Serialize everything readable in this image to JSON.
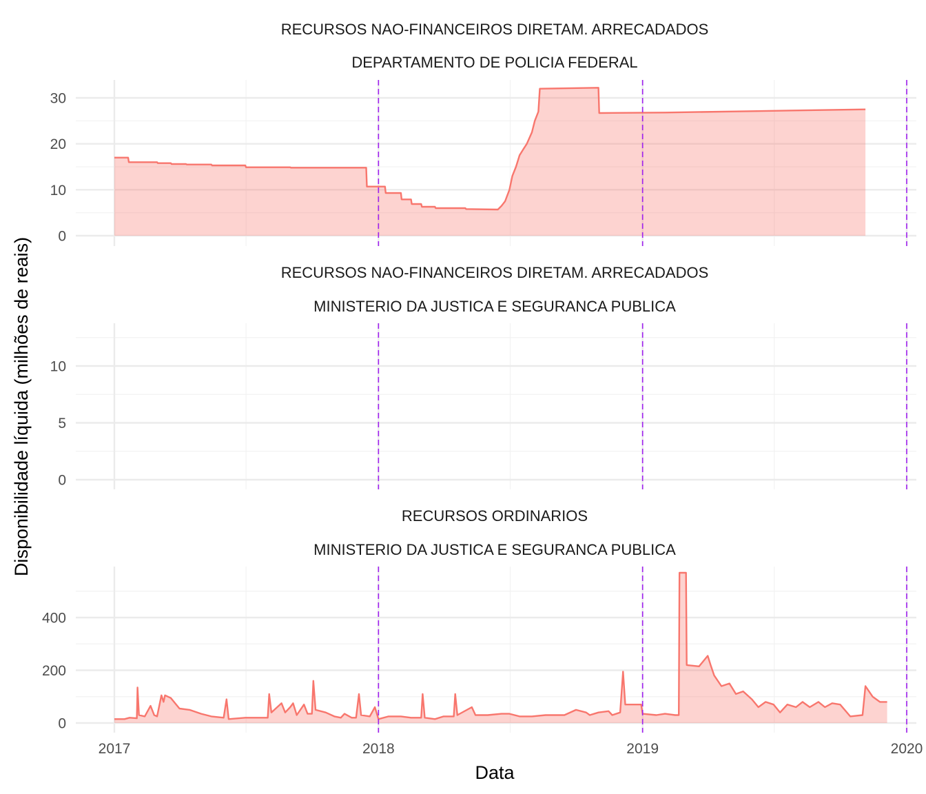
{
  "colors": {
    "series_line": "#F8766D",
    "series_fill": "#F8766D",
    "year_marker": "#A020F0",
    "grid_major": "#EBEBEB",
    "grid_minor": "#F2F2F2"
  },
  "chart_data": {
    "type": "area",
    "x_label": "Data",
    "y_label": "Disponibilidade líquida (milhões de reais)",
    "x_ticks": [
      "2017",
      "2018",
      "2019",
      "2020"
    ],
    "x_range": [
      "2017-01-01",
      "2020-01-01"
    ],
    "year_markers": [
      "2018-01-01",
      "2019-01-01",
      "2020-01-01"
    ],
    "panels": [
      {
        "title": [
          "RECURSOS NAO-FINANCEIROS DIRETAM. ARRECADADOS",
          "DEPARTAMENTO DE POLICIA FEDERAL"
        ],
        "y_ticks": [
          0,
          10,
          20,
          30
        ],
        "y_range": [
          0,
          33
        ],
        "points": [
          [
            "2017-01-01",
            17
          ],
          [
            "2017-01-20",
            17
          ],
          [
            "2017-01-21",
            16
          ],
          [
            "2017-03-01",
            16
          ],
          [
            "2017-03-02",
            15.8
          ],
          [
            "2017-03-20",
            15.8
          ],
          [
            "2017-03-21",
            15.6
          ],
          [
            "2017-04-10",
            15.6
          ],
          [
            "2017-04-11",
            15.5
          ],
          [
            "2017-05-15",
            15.5
          ],
          [
            "2017-05-16",
            15.3
          ],
          [
            "2017-07-01",
            15.3
          ],
          [
            "2017-07-02",
            14.9
          ],
          [
            "2017-09-01",
            14.9
          ],
          [
            "2017-09-02",
            14.8
          ],
          [
            "2017-12-15",
            14.8
          ],
          [
            "2017-12-16",
            10.7
          ],
          [
            "2018-01-10",
            10.7
          ],
          [
            "2018-01-11",
            9.3
          ],
          [
            "2018-02-01",
            9.3
          ],
          [
            "2018-02-02",
            7.9
          ],
          [
            "2018-02-15",
            7.9
          ],
          [
            "2018-02-16",
            6.9
          ],
          [
            "2018-03-01",
            6.9
          ],
          [
            "2018-03-02",
            6.3
          ],
          [
            "2018-03-20",
            6.3
          ],
          [
            "2018-03-21",
            6
          ],
          [
            "2018-05-01",
            6
          ],
          [
            "2018-05-02",
            5.8
          ],
          [
            "2018-06-15",
            5.7
          ],
          [
            "2018-06-20",
            6.5
          ],
          [
            "2018-06-25",
            7.5
          ],
          [
            "2018-07-01",
            10
          ],
          [
            "2018-07-05",
            13
          ],
          [
            "2018-07-10",
            15
          ],
          [
            "2018-07-15",
            17.5
          ],
          [
            "2018-07-20",
            18.8
          ],
          [
            "2018-07-25",
            20
          ],
          [
            "2018-08-01",
            22.5
          ],
          [
            "2018-08-05",
            25
          ],
          [
            "2018-08-10",
            27
          ],
          [
            "2018-08-12",
            32
          ],
          [
            "2018-11-01",
            32.2
          ],
          [
            "2018-11-02",
            26.7
          ],
          [
            "2019-02-01",
            26.8
          ],
          [
            "2019-06-01",
            27.1
          ],
          [
            "2019-11-05",
            27.5
          ]
        ]
      },
      {
        "title": [
          "RECURSOS NAO-FINANCEIROS DIRETAM. ARRECADADOS",
          "MINISTERIO DA JUSTICA E SEGURANCA PUBLICA"
        ],
        "y_ticks": [
          0,
          5,
          10
        ],
        "y_range": [
          0,
          14
        ],
        "points": []
      },
      {
        "title": [
          "RECURSOS ORDINARIOS",
          "MINISTERIO DA JUSTICA E SEGURANCA PUBLICA"
        ],
        "y_ticks": [
          0,
          200,
          400
        ],
        "y_range": [
          0,
          600
        ],
        "points": [
          [
            "2017-01-01",
            15
          ],
          [
            "2017-01-15",
            15
          ],
          [
            "2017-01-22",
            20
          ],
          [
            "2017-02-01",
            18
          ],
          [
            "2017-02-02",
            135
          ],
          [
            "2017-02-04",
            30
          ],
          [
            "2017-02-12",
            25
          ],
          [
            "2017-02-20",
            65
          ],
          [
            "2017-02-25",
            30
          ],
          [
            "2017-03-01",
            25
          ],
          [
            "2017-03-07",
            105
          ],
          [
            "2017-03-10",
            80
          ],
          [
            "2017-03-12",
            105
          ],
          [
            "2017-03-20",
            95
          ],
          [
            "2017-04-01",
            55
          ],
          [
            "2017-04-15",
            50
          ],
          [
            "2017-05-01",
            35
          ],
          [
            "2017-05-15",
            25
          ],
          [
            "2017-06-01",
            20
          ],
          [
            "2017-06-05",
            90
          ],
          [
            "2017-06-08",
            15
          ],
          [
            "2017-07-01",
            20
          ],
          [
            "2017-07-15",
            20
          ],
          [
            "2017-08-01",
            20
          ],
          [
            "2017-08-03",
            110
          ],
          [
            "2017-08-06",
            40
          ],
          [
            "2017-08-20",
            75
          ],
          [
            "2017-08-25",
            40
          ],
          [
            "2017-09-01",
            60
          ],
          [
            "2017-09-05",
            75
          ],
          [
            "2017-09-10",
            30
          ],
          [
            "2017-09-20",
            70
          ],
          [
            "2017-09-25",
            35
          ],
          [
            "2017-10-01",
            35
          ],
          [
            "2017-10-03",
            160
          ],
          [
            "2017-10-06",
            50
          ],
          [
            "2017-10-20",
            40
          ],
          [
            "2017-11-01",
            25
          ],
          [
            "2017-11-10",
            20
          ],
          [
            "2017-11-15",
            35
          ],
          [
            "2017-11-25",
            20
          ],
          [
            "2017-12-01",
            20
          ],
          [
            "2017-12-05",
            110
          ],
          [
            "2017-12-08",
            30
          ],
          [
            "2017-12-20",
            25
          ],
          [
            "2017-12-27",
            60
          ],
          [
            "2018-01-01",
            15
          ],
          [
            "2018-01-15",
            25
          ],
          [
            "2018-02-01",
            25
          ],
          [
            "2018-02-15",
            20
          ],
          [
            "2018-03-01",
            20
          ],
          [
            "2018-03-03",
            110
          ],
          [
            "2018-03-06",
            20
          ],
          [
            "2018-03-20",
            15
          ],
          [
            "2018-04-01",
            25
          ],
          [
            "2018-04-15",
            25
          ],
          [
            "2018-04-17",
            110
          ],
          [
            "2018-04-20",
            30
          ],
          [
            "2018-05-10",
            60
          ],
          [
            "2018-05-15",
            30
          ],
          [
            "2018-06-01",
            30
          ],
          [
            "2018-06-20",
            35
          ],
          [
            "2018-07-01",
            35
          ],
          [
            "2018-07-15",
            25
          ],
          [
            "2018-08-01",
            25
          ],
          [
            "2018-08-20",
            30
          ],
          [
            "2018-09-01",
            30
          ],
          [
            "2018-09-15",
            30
          ],
          [
            "2018-10-01",
            50
          ],
          [
            "2018-10-15",
            40
          ],
          [
            "2018-10-20",
            30
          ],
          [
            "2018-11-01",
            40
          ],
          [
            "2018-11-15",
            45
          ],
          [
            "2018-11-20",
            30
          ],
          [
            "2018-12-01",
            40
          ],
          [
            "2018-12-05",
            195
          ],
          [
            "2018-12-08",
            70
          ],
          [
            "2018-12-20",
            70
          ],
          [
            "2018-12-30",
            70
          ],
          [
            "2019-01-01",
            35
          ],
          [
            "2019-01-20",
            30
          ],
          [
            "2019-02-01",
            35
          ],
          [
            "2019-02-15",
            30
          ],
          [
            "2019-02-20",
            30
          ],
          [
            "2019-02-21",
            570
          ],
          [
            "2019-03-02",
            570
          ],
          [
            "2019-03-03",
            220
          ],
          [
            "2019-03-20",
            215
          ],
          [
            "2019-04-01",
            255
          ],
          [
            "2019-04-05",
            220
          ],
          [
            "2019-04-10",
            180
          ],
          [
            "2019-04-20",
            140
          ],
          [
            "2019-05-01",
            150
          ],
          [
            "2019-05-10",
            110
          ],
          [
            "2019-05-20",
            120
          ],
          [
            "2019-06-01",
            90
          ],
          [
            "2019-06-10",
            60
          ],
          [
            "2019-06-20",
            80
          ],
          [
            "2019-07-01",
            70
          ],
          [
            "2019-07-10",
            40
          ],
          [
            "2019-07-20",
            70
          ],
          [
            "2019-08-01",
            60
          ],
          [
            "2019-08-10",
            80
          ],
          [
            "2019-08-20",
            60
          ],
          [
            "2019-09-01",
            80
          ],
          [
            "2019-09-10",
            60
          ],
          [
            "2019-09-20",
            75
          ],
          [
            "2019-10-01",
            70
          ],
          [
            "2019-10-15",
            25
          ],
          [
            "2019-11-01",
            30
          ],
          [
            "2019-11-05",
            140
          ],
          [
            "2019-11-15",
            100
          ],
          [
            "2019-11-25",
            80
          ],
          [
            "2019-12-05",
            80
          ]
        ]
      }
    ]
  }
}
